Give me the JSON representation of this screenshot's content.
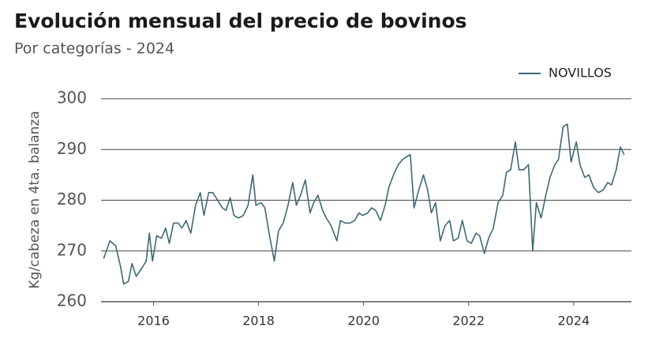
{
  "chart_data": {
    "type": "line",
    "title": "Evolución mensual del precio de bovinos",
    "subtitle": "Por categorías - 2024",
    "y_label": "Kg/cabeza en 4ta. balanza",
    "xlim": [
      2015,
      2025.1
    ],
    "xticks": [
      2016,
      2018,
      2020,
      2022,
      2024
    ],
    "ylim": [
      260,
      300
    ],
    "yticks": [
      260,
      270,
      280,
      290,
      300
    ],
    "grid": true,
    "legend": "top-right",
    "x": [
      2015.05,
      2015.17,
      2015.28,
      2015.37,
      2015.43,
      2015.52,
      2015.59,
      2015.67,
      2015.77,
      2015.86,
      2015.92,
      2015.98,
      2016.06,
      2016.15,
      2016.23,
      2016.3,
      2016.38,
      2016.47,
      2016.54,
      2016.62,
      2016.71,
      2016.8,
      2016.89,
      2016.96,
      2017.05,
      2017.13,
      2017.22,
      2017.31,
      2017.38,
      2017.46,
      2017.53,
      2017.62,
      2017.71,
      2017.8,
      2017.89,
      2017.95,
      2018.05,
      2018.12,
      2018.2,
      2018.3,
      2018.38,
      2018.47,
      2018.56,
      2018.65,
      2018.72,
      2018.8,
      2018.89,
      2018.98,
      2019.05,
      2019.13,
      2019.22,
      2019.29,
      2019.38,
      2019.49,
      2019.56,
      2019.65,
      2019.74,
      2019.83,
      2019.91,
      2019.98,
      2020.08,
      2020.15,
      2020.23,
      2020.32,
      2020.41,
      2020.48,
      2020.57,
      2020.66,
      2020.74,
      2020.81,
      2020.89,
      2020.96,
      2021.05,
      2021.14,
      2021.22,
      2021.29,
      2021.37,
      2021.46,
      2021.55,
      2021.64,
      2021.71,
      2021.8,
      2021.88,
      2021.97,
      2022.05,
      2022.14,
      2022.21,
      2022.3,
      2022.38,
      2022.47,
      2022.56,
      2022.65,
      2022.72,
      2022.8,
      2022.89,
      2022.96,
      2023.05,
      2023.14,
      2023.22,
      2023.29,
      2023.38,
      2023.47,
      2023.55,
      2023.64,
      2023.71,
      2023.8,
      2023.88,
      2023.95,
      2024.05,
      2024.12,
      2024.21,
      2024.29,
      2024.38,
      2024.47,
      2024.56,
      2024.65,
      2024.72,
      2024.81,
      2024.89,
      2024.96
    ],
    "series": [
      {
        "name": "NOVILLOS",
        "color": "#3f6873",
        "values": [
          268.5,
          272,
          271,
          267,
          263.5,
          264,
          267.5,
          265,
          266.5,
          268,
          273.5,
          268,
          273,
          272.5,
          274.5,
          271.5,
          275.5,
          275.5,
          274.5,
          276,
          273.5,
          279,
          281.5,
          277,
          281.5,
          281.5,
          280,
          278.5,
          278,
          280.5,
          277,
          276.5,
          277,
          279,
          285,
          279,
          279.5,
          278.5,
          273.5,
          268,
          274,
          275.5,
          279,
          283.5,
          279,
          281,
          284,
          277.5,
          279.5,
          281,
          278,
          276.5,
          275,
          272,
          276,
          275.5,
          275.5,
          276,
          277.5,
          277,
          277.5,
          278.5,
          278,
          276,
          279,
          282.5,
          285,
          287,
          288,
          288.5,
          289,
          278.5,
          282,
          285,
          282,
          277.5,
          279.5,
          272,
          275,
          276,
          272,
          272.5,
          276,
          272,
          271.5,
          273.5,
          273,
          269.5,
          272.5,
          274.5,
          279.5,
          281,
          285.5,
          286,
          291.5,
          286,
          286,
          287,
          270,
          279.5,
          276.5,
          281,
          284.5,
          287,
          288,
          294.5,
          295,
          287.5,
          291.5,
          287,
          284.5,
          285,
          282.5,
          281.5,
          282,
          283.5,
          283,
          286,
          290.5,
          289
        ]
      }
    ]
  }
}
